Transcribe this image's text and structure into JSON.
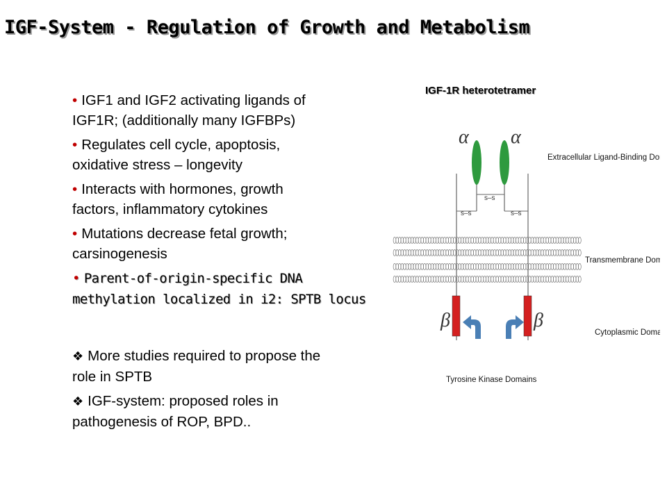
{
  "title": "IGF-System - Regulation of Growth and Metabolism",
  "bullets": [
    {
      "line1": "IGF1 and IGF2 activating ligands of",
      "line2": "IGF1R; (additionally  many IGFBPs)"
    },
    {
      "line1": "Regulates cell cycle, apoptosis,",
      "line2": "oxidative stress – longevity"
    },
    {
      "line1": "Interacts with hormones, growth",
      "line2": "factors, inflammatory cytokines"
    },
    {
      "line1": "Mutations decrease fetal growth;",
      "line2": "carsinogenesis"
    },
    {
      "line1": "Parent-of-origin-specific DNA",
      "line2": "methylation localized in i2: SPTB locus"
    }
  ],
  "notes": [
    {
      "line1": "More studies required to propose the",
      "line2": "role in SPTB"
    },
    {
      "line1": "IGF-system: proposed roles in",
      "line2": "pathogenesis of ROP, BPD.."
    }
  ],
  "figure": {
    "title": "IGF-1R heterotetramer",
    "alpha_symbol": "α",
    "beta_symbol": "β",
    "disulfide": "s–s",
    "labels": {
      "extracellular": "Extracellular Ligand-Binding Domain",
      "transmembrane": "Transmembrane Domain",
      "cytoplasmic": "Cytoplasmic Domain",
      "kinase": "Tyrosine Kinase Domains"
    }
  },
  "colors": {
    "bullet": "#c00000",
    "alpha_subunit": "#2e9a3e",
    "beta_subunit": "#d42020",
    "arrow": "#4a7fb5"
  }
}
